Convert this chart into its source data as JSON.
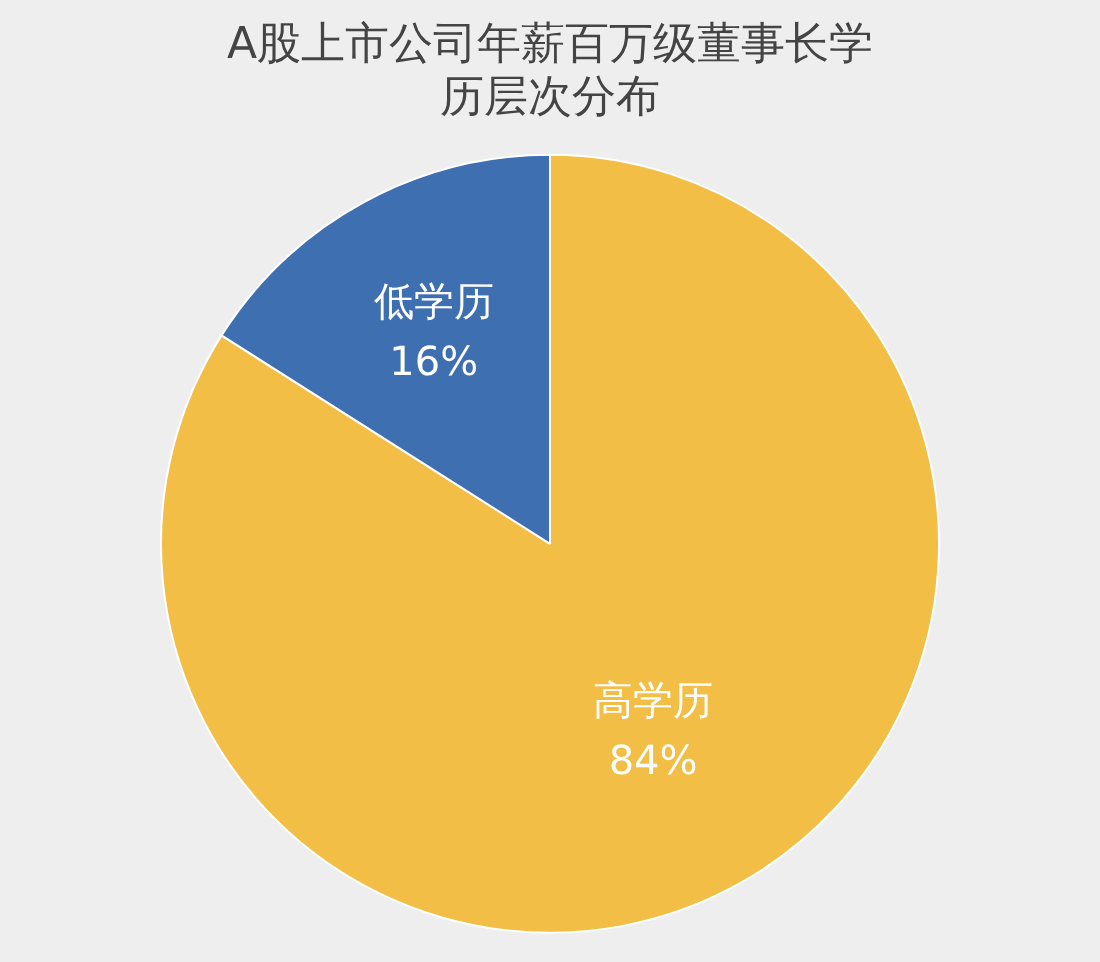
{
  "chart_data": {
    "type": "pie",
    "title": "A股上市公司年薪百万级董事长学历层次分布",
    "categories": [
      "高学历",
      "低学历"
    ],
    "values": [
      84,
      16
    ],
    "value_labels": [
      "84%",
      "16%"
    ],
    "colors": [
      "#f2be45",
      "#3e6fb0"
    ],
    "legend": false
  }
}
